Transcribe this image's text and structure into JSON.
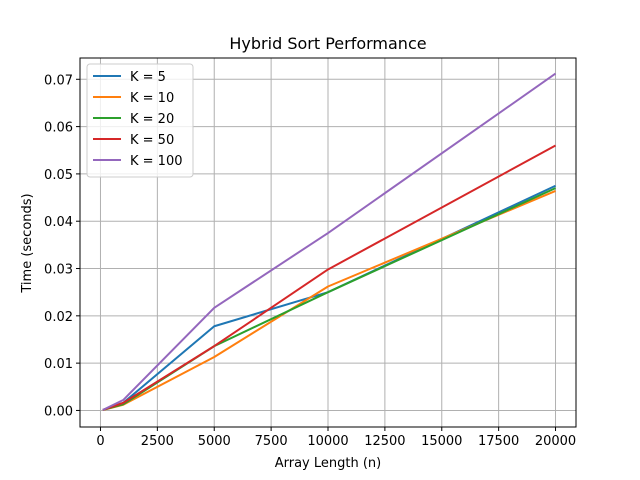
{
  "chart_data": {
    "type": "line",
    "title": "Hybrid Sort Performance",
    "xlabel": "Array Length (n)",
    "ylabel": "Time (seconds)",
    "xlim": [
      -900,
      20900
    ],
    "ylim": [
      -0.0035,
      0.0745
    ],
    "xticks": [
      0,
      2500,
      5000,
      7500,
      10000,
      12500,
      15000,
      17500,
      20000
    ],
    "xtick_labels": [
      "0",
      "2500",
      "5000",
      "7500",
      "10000",
      "12500",
      "15000",
      "17500",
      "20000"
    ],
    "yticks": [
      0.0,
      0.01,
      0.02,
      0.03,
      0.04,
      0.05,
      0.06,
      0.07
    ],
    "ytick_labels": [
      "0.00",
      "0.01",
      "0.02",
      "0.03",
      "0.04",
      "0.05",
      "0.06",
      "0.07"
    ],
    "grid": true,
    "legend_position": "top-left",
    "x": [
      100,
      1000,
      5000,
      10000,
      20000
    ],
    "series": [
      {
        "name": "K = 5",
        "color": "#1f77b4",
        "values": [
          0.0001,
          0.0016,
          0.0178,
          0.025,
          0.0475
        ]
      },
      {
        "name": "K = 10",
        "color": "#ff7f0e",
        "values": [
          0.0001,
          0.0012,
          0.0113,
          0.0262,
          0.0464
        ]
      },
      {
        "name": "K = 20",
        "color": "#2ca02c",
        "values": [
          0.0001,
          0.0013,
          0.0136,
          0.025,
          0.047
        ]
      },
      {
        "name": "K = 50",
        "color": "#d62728",
        "values": [
          0.0001,
          0.0016,
          0.0136,
          0.0298,
          0.056
        ]
      },
      {
        "name": "K = 100",
        "color": "#9467bd",
        "values": [
          0.0001,
          0.0022,
          0.0217,
          0.0375,
          0.0712
        ]
      }
    ]
  }
}
